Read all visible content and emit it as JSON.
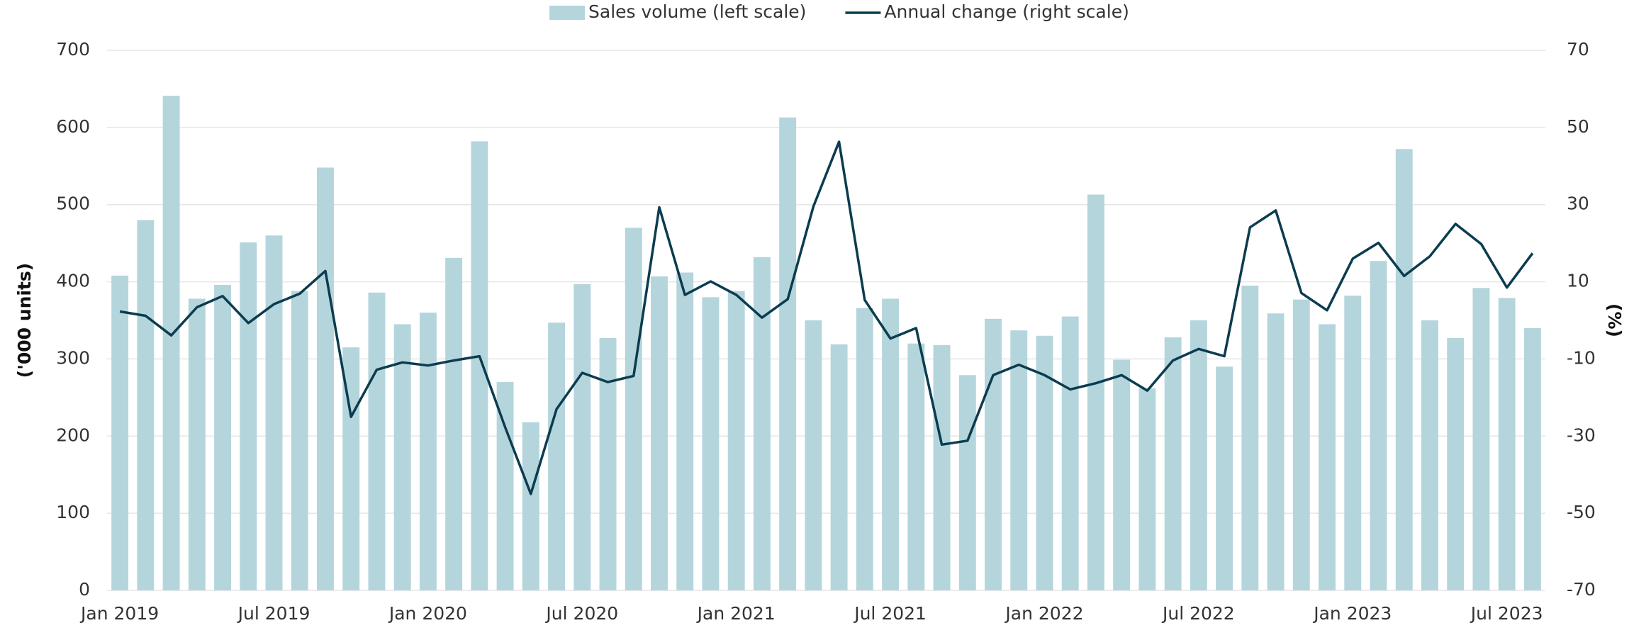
{
  "chart_data": {
    "type": "bar-line",
    "categories": [
      "Jan 2019",
      null,
      null,
      null,
      null,
      null,
      "Jul 2019",
      null,
      null,
      null,
      null,
      null,
      "Jan 2020",
      null,
      null,
      null,
      null,
      null,
      "Jul 2020",
      null,
      null,
      null,
      null,
      null,
      "Jan 2021",
      null,
      null,
      null,
      null,
      null,
      "Jul 2021",
      null,
      null,
      null,
      null,
      null,
      "Jan 2022",
      null,
      null,
      null,
      null,
      null,
      "Jul 2022",
      null,
      null,
      null,
      null,
      null,
      "Jan 2023",
      null,
      null,
      null,
      null,
      null,
      "Jul 2023",
      null
    ],
    "series": [
      {
        "name": "Sales volume (left scale)",
        "type": "bar",
        "color": "#b5d5dc",
        "values": [
          408,
          480,
          641,
          378,
          396,
          451,
          460,
          388,
          548,
          315,
          386,
          345,
          360,
          431,
          582,
          270,
          218,
          347,
          397,
          327,
          470,
          407,
          412,
          380,
          388,
          432,
          613,
          350,
          319,
          366,
          378,
          320,
          318,
          279,
          352,
          337,
          330,
          355,
          513,
          299,
          262,
          328,
          350,
          290,
          395,
          359,
          377,
          345,
          382,
          427,
          572,
          350,
          327,
          392,
          379,
          340
        ]
      },
      {
        "name": "Annual change (right scale)",
        "type": "line",
        "axis": "y2",
        "color": "#0b3c4f",
        "values": [
          2.3,
          1.2,
          -3.9,
          3.4,
          6.3,
          -0.7,
          4.2,
          6.9,
          12.8,
          -25,
          -12.8,
          -10.9,
          -11.7,
          -10.4,
          -9.3,
          -27.7,
          -45,
          -23,
          -13.6,
          -16,
          -14.4,
          29.3,
          6.6,
          10.1,
          6.6,
          0.7,
          5.5,
          29.5,
          46.3,
          5.3,
          -4.7,
          -2,
          -32.2,
          -31.2,
          -14.2,
          -11.5,
          -14.2,
          -17.9,
          -16.3,
          -14.2,
          -18.2,
          -10.4,
          -7.4,
          -9.3,
          24.1,
          28.5,
          7.1,
          2.6,
          16,
          20.1,
          11.5,
          16.6,
          25,
          19.8,
          8.5,
          17.4
        ]
      }
    ],
    "ylabel": "('000 units)",
    "y2label": "(%)",
    "ylim": [
      0,
      700
    ],
    "yticks": [
      0,
      100,
      200,
      300,
      400,
      500,
      600,
      700
    ],
    "y2lim": [
      -70,
      70
    ],
    "y2ticks": [
      -70,
      -50,
      -30,
      -10,
      10,
      30,
      50,
      70
    ],
    "grid": true,
    "legend": "top"
  }
}
